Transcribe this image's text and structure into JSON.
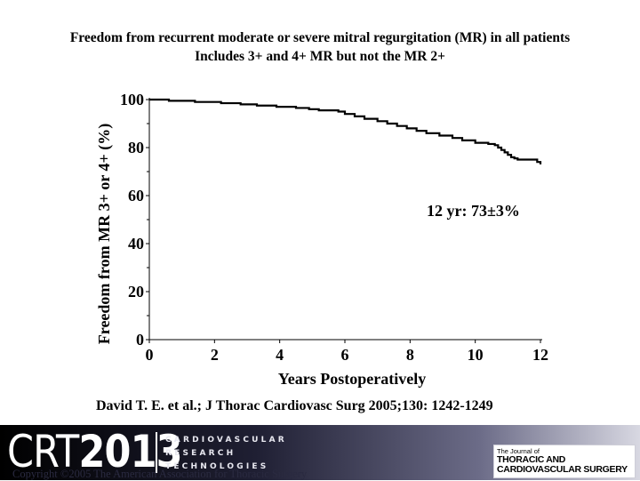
{
  "title": {
    "line1": "Freedom from recurrent moderate or severe mitral regurgitation (MR) in all patients",
    "line2": "Includes 3+ and 4+ MR but not the MR 2+"
  },
  "chart_data": {
    "type": "line",
    "xlabel": "Years Postoperatively",
    "ylabel": "Freedom from  MR 3+ or 4+ (%)",
    "xlim": [
      0,
      12
    ],
    "ylim": [
      0,
      100
    ],
    "xticks": [
      0,
      2,
      4,
      6,
      8,
      10,
      12
    ],
    "yticks": [
      0,
      20,
      40,
      60,
      80,
      100
    ],
    "grid": false,
    "annotation": "12 yr:  73±3%",
    "series": [
      {
        "step": true,
        "color": "#000000",
        "x": [
          0,
          0.6,
          1.4,
          2.2,
          2.8,
          3.3,
          3.9,
          4.5,
          4.9,
          5.2,
          5.8,
          6.0,
          6.3,
          6.6,
          7.0,
          7.3,
          7.6,
          7.9,
          8.2,
          8.5,
          8.9,
          9.3,
          9.6,
          10.0,
          10.4,
          10.6,
          10.7,
          10.8,
          10.9,
          11.0,
          11.1,
          11.2,
          11.3,
          11.9,
          12.0
        ],
        "y": [
          100,
          99.5,
          99,
          98.5,
          98,
          97.5,
          97,
          96.5,
          96,
          95.5,
          95,
          94,
          93,
          92,
          91,
          90,
          89,
          88,
          87,
          86,
          85,
          84,
          83,
          82,
          81.5,
          81,
          80,
          79,
          78,
          77,
          76,
          75.5,
          75,
          74,
          73
        ]
      }
    ]
  },
  "citation": "David  T. E. et al.; J Thorac Cardiovasc Surg 2005;130: 1242-1249",
  "footer": {
    "logo_prefix": "CRT",
    "logo_year": "2013",
    "logo_line1": "CARDIOVASCULAR",
    "logo_line2": "RESEARCH",
    "logo_line3": "TECHNOLOGIES",
    "copyright": "Copyright ©2005 The American Association for Thoracic Surgery",
    "journal_small": "The Journal of",
    "journal_line1": "THORACIC AND",
    "journal_line2": "CARDIOVASCULAR SURGERY"
  }
}
